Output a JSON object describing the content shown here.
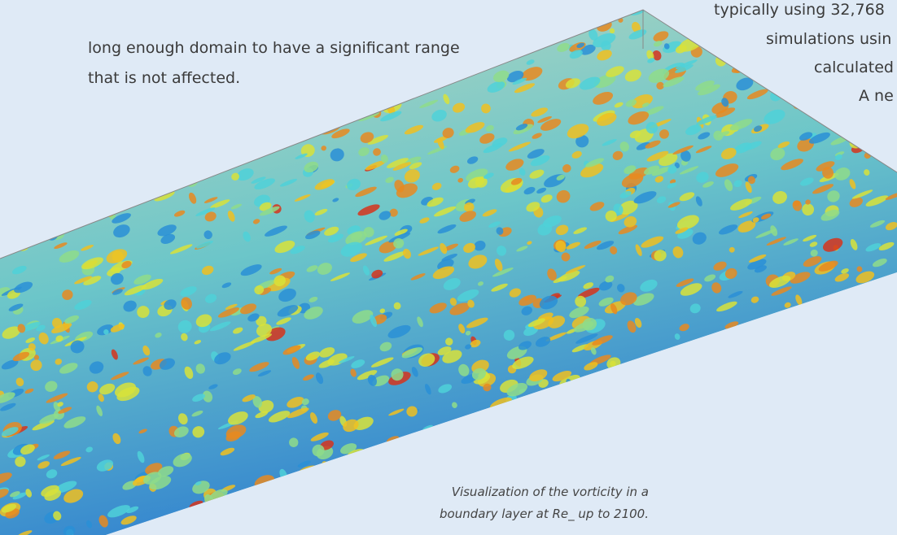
{
  "body": {
    "paragraph_left": [
      "long enough domain to have a significant range",
      "that is not affected."
    ],
    "paragraph_right": [
      "typically using 32,768",
      "simulations usin",
      "calculated",
      "A ne"
    ]
  },
  "figure": {
    "caption": [
      "Visualization of the vorticity in a",
      "boundary layer at Re_ up to 2100."
    ]
  }
}
